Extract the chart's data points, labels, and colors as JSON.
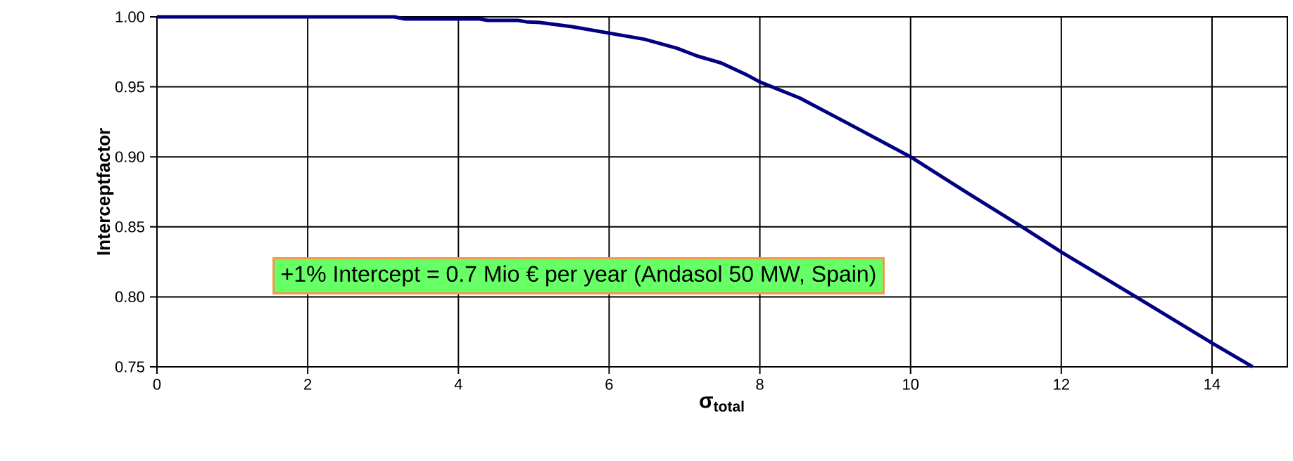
{
  "chart_data": {
    "type": "line",
    "xlabel": "σ$_{total}$",
    "ylabel": "Interceptfactor",
    "x": [
      0,
      1,
      2,
      3,
      3.15,
      3.29,
      4.28,
      4.39,
      4.79,
      4.92,
      5.08,
      5.51,
      5.99,
      6.47,
      6.9,
      7.17,
      7.49,
      7.81,
      8.0,
      8.53,
      9.2,
      10.0,
      10.76,
      11.48,
      12.0,
      12.99,
      14.0,
      14.54
    ],
    "series": [
      {
        "color": "#000080",
        "values": [
          1.0,
          1.0,
          1.0,
          1.0,
          1.0,
          0.9985,
          0.9985,
          0.9975,
          0.9975,
          0.9963,
          0.996,
          0.993,
          0.9885,
          0.984,
          0.9776,
          0.972,
          0.967,
          0.959,
          0.9535,
          0.942,
          0.923,
          0.9,
          0.874,
          0.85,
          0.832,
          0.8,
          0.767,
          0.75
        ]
      }
    ],
    "xlim": [
      0,
      15
    ],
    "ylim": [
      0.75,
      1.0
    ],
    "xticks": [
      0,
      2,
      4,
      6,
      8,
      10,
      12,
      14
    ],
    "yticks": [
      {
        "value": 0.75,
        "label": "0.75"
      },
      {
        "value": 0.8,
        "label": "0.80"
      },
      {
        "value": 0.85,
        "label": "0.85"
      },
      {
        "value": 0.9,
        "label": "0.90"
      },
      {
        "value": 0.95,
        "label": "0.95"
      },
      {
        "value": 1.0,
        "label": "1.00"
      }
    ],
    "grid": true,
    "annotations": [
      "+1% Intercept = 0.7 Mio € per year (Andasol 50 MW, Spain)"
    ]
  }
}
